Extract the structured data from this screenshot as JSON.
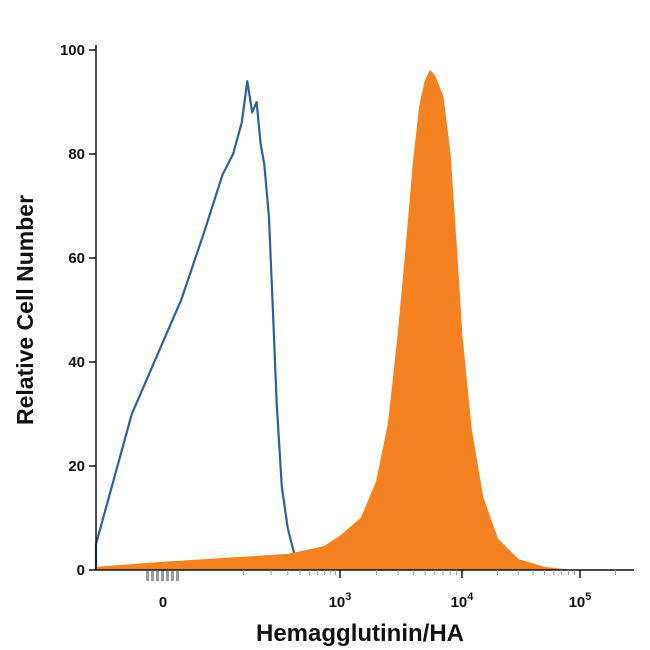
{
  "chart_data": {
    "type": "area",
    "title": "",
    "xlabel": "Hemagglutinin/HA",
    "ylabel": "Relative Cell Number",
    "x_scale": "biexponential",
    "ylim": [
      0,
      100
    ],
    "y_ticks": [
      0,
      20,
      40,
      60,
      80,
      100
    ],
    "y_tick_labels": [
      "0",
      "20",
      "40",
      "60",
      "80",
      "100"
    ],
    "x_tick_labels": [
      {
        "base": "0",
        "exp": ""
      },
      {
        "base": "10",
        "exp": "3"
      },
      {
        "base": "10",
        "exp": "4"
      },
      {
        "base": "10",
        "exp": "5"
      }
    ],
    "grid": false,
    "legend": "none",
    "colors": {
      "isotype": "#2f5f9e",
      "stained": "#f58220",
      "axis": "#111111",
      "minor_tick": "#999999"
    },
    "series": [
      {
        "style": "outline",
        "x": [
          -250,
          -150,
          -80,
          -20,
          10,
          30,
          55,
          75,
          95,
          110,
          125,
          140,
          155,
          170,
          190,
          210,
          230,
          260,
          300,
          350,
          420,
          520,
          700
        ],
        "values": [
          0,
          2,
          5,
          30,
          52,
          65,
          76,
          80,
          86,
          94,
          88,
          90,
          82,
          78,
          68,
          50,
          32,
          16,
          8,
          3,
          1.5,
          0.5,
          0
        ]
      },
      {
        "style": "filled",
        "x": [
          -200,
          0,
          300,
          700,
          1000,
          1500,
          2000,
          2500,
          3000,
          3500,
          4000,
          4500,
          5000,
          5500,
          6000,
          7000,
          8000,
          9000,
          10000,
          12000,
          15000,
          20000,
          30000,
          50000,
          80000
        ],
        "values": [
          0.5,
          1.5,
          3,
          4.5,
          6.5,
          10,
          17,
          28,
          45,
          62,
          78,
          89,
          94,
          96,
          95,
          91,
          80,
          62,
          45,
          27,
          14,
          6,
          2,
          0.5,
          0
        ]
      }
    ]
  }
}
